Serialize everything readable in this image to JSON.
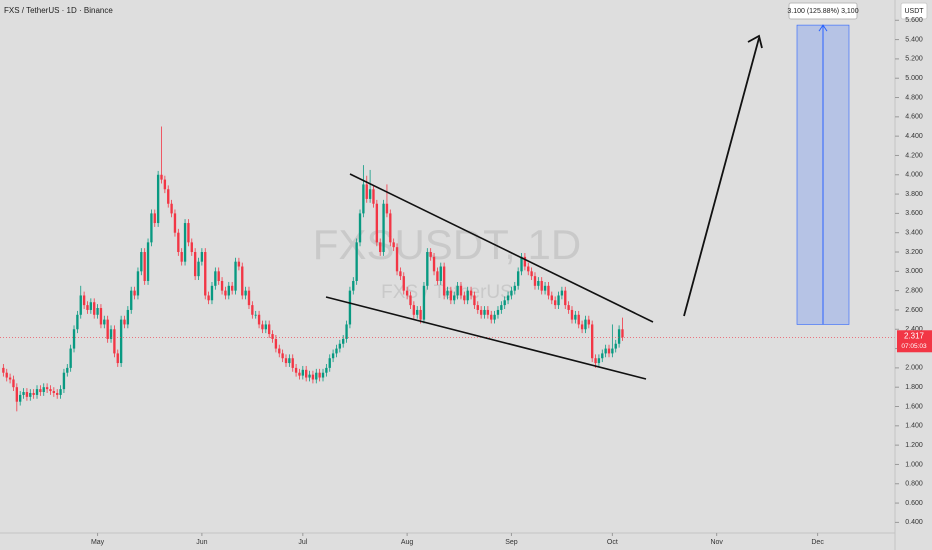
{
  "chart_data": {
    "type": "candlestick",
    "title": "FXS / TetherUS · 1D · Binance",
    "watermark": "FXSUSDT, 1D",
    "watermark_sub": "FXS / TetherUS",
    "y_axis_label": "USDT",
    "countdown": "07:05:03",
    "up_color": "#089981",
    "down_color": "#f23645",
    "ylim": [
      0.29,
      5.81
    ],
    "xlim": [
      -1,
      265
    ],
    "yticks": [
      {
        "value": 0.4,
        "label": "0.400"
      },
      {
        "value": 0.6,
        "label": "0.600"
      },
      {
        "value": 0.8,
        "label": "0.800"
      },
      {
        "value": 1.0,
        "label": "1.000"
      },
      {
        "value": 1.2,
        "label": "1.200"
      },
      {
        "value": 1.4,
        "label": "1.400"
      },
      {
        "value": 1.6,
        "label": "1.600"
      },
      {
        "value": 1.8,
        "label": "1.800"
      },
      {
        "value": 2.0,
        "label": "2.000"
      },
      {
        "value": 2.2,
        "label": "2.200"
      },
      {
        "value": 2.4,
        "label": "2.400"
      },
      {
        "value": 2.6,
        "label": "2.600"
      },
      {
        "value": 2.8,
        "label": "2.800"
      },
      {
        "value": 3.0,
        "label": "3.000"
      },
      {
        "value": 3.2,
        "label": "3.200"
      },
      {
        "value": 3.4,
        "label": "3.400"
      },
      {
        "value": 3.6,
        "label": "3.600"
      },
      {
        "value": 3.8,
        "label": "3.800"
      },
      {
        "value": 4.0,
        "label": "4.000"
      },
      {
        "value": 4.2,
        "label": "4.200"
      },
      {
        "value": 4.4,
        "label": "4.400"
      },
      {
        "value": 4.6,
        "label": "4.600"
      },
      {
        "value": 4.8,
        "label": "4.800"
      },
      {
        "value": 5.0,
        "label": "5.000"
      },
      {
        "value": 5.2,
        "label": "5.200"
      },
      {
        "value": 5.4,
        "label": "5.400"
      },
      {
        "value": 5.6,
        "label": "5.600"
      }
    ],
    "xticks": [
      {
        "value": 28,
        "label": "May"
      },
      {
        "value": 59,
        "label": "Jun"
      },
      {
        "value": 89,
        "label": "Jul"
      },
      {
        "value": 120,
        "label": "Aug"
      },
      {
        "value": 151,
        "label": "Sep"
      },
      {
        "value": 181,
        "label": "Oct"
      },
      {
        "value": 212,
        "label": "Nov"
      },
      {
        "value": 242,
        "label": "Dec"
      }
    ],
    "measure": {
      "label": "3.100 (125.88%) 3,100",
      "low": 2.45,
      "high": 5.55
    },
    "open": [
      2.0,
      1.95,
      1.9,
      1.88,
      1.8,
      1.65,
      1.72,
      1.75,
      1.7,
      1.74,
      1.72,
      1.78,
      1.75,
      1.8,
      1.78,
      1.76,
      1.74,
      1.72,
      1.78,
      1.95,
      2.0,
      2.2,
      2.4,
      2.55,
      2.75,
      2.65,
      2.6,
      2.68,
      2.55,
      2.62,
      2.45,
      2.5,
      2.3,
      2.4,
      2.15,
      2.05,
      2.5,
      2.45,
      2.6,
      2.8,
      2.75,
      3.0,
      3.2,
      2.9,
      3.3,
      3.6,
      3.5,
      4.0,
      3.95,
      3.85,
      3.7,
      3.6,
      3.4,
      3.2,
      3.1,
      3.5,
      3.3,
      3.2,
      2.95,
      3.1,
      3.2,
      2.75,
      2.7,
      2.85,
      3.0,
      2.9,
      2.8,
      2.75,
      2.85,
      2.8,
      3.1,
      3.05,
      2.75,
      2.8,
      2.65,
      2.55,
      2.55,
      2.45,
      2.4,
      2.45,
      2.35,
      2.3,
      2.2,
      2.15,
      2.1,
      2.05,
      2.1,
      2.0,
      1.95,
      1.92,
      1.98,
      1.9,
      1.93,
      1.88,
      1.95,
      1.9,
      1.95,
      2.0,
      2.1,
      2.15,
      2.2,
      2.25,
      2.3,
      2.45,
      2.8,
      2.9,
      3.3,
      3.6,
      3.9,
      3.75,
      3.85,
      3.7,
      3.3,
      3.2,
      3.7,
      3.6,
      3.3,
      3.25,
      3.0,
      2.95,
      2.8,
      2.75,
      2.65,
      2.55,
      2.6,
      2.5,
      2.85,
      3.2,
      3.15,
      3.0,
      2.9,
      3.05,
      2.75,
      2.8,
      2.7,
      2.75,
      2.85,
      2.75,
      2.7,
      2.8,
      2.75,
      2.65,
      2.6,
      2.55,
      2.6,
      2.55,
      2.5,
      2.55,
      2.6,
      2.65,
      2.7,
      2.75,
      2.8,
      2.85,
      3.0,
      3.15,
      3.05,
      3.0,
      2.95,
      2.85,
      2.9,
      2.8,
      2.85,
      2.75,
      2.7,
      2.65,
      2.75,
      2.8,
      2.65,
      2.6,
      2.5,
      2.55,
      2.45,
      2.4,
      2.5,
      2.45,
      2.1,
      2.05,
      2.1,
      2.15,
      2.2,
      2.15,
      2.2,
      2.25,
      2.4
    ],
    "high": [
      2.04,
      1.99,
      1.94,
      1.92,
      1.84,
      1.76,
      1.79,
      1.79,
      1.78,
      1.78,
      1.82,
      1.82,
      1.84,
      1.84,
      1.82,
      1.8,
      1.78,
      1.82,
      1.99,
      2.04,
      2.24,
      2.44,
      2.59,
      2.85,
      2.79,
      2.69,
      2.72,
      2.72,
      2.66,
      2.66,
      2.54,
      2.54,
      2.44,
      2.44,
      2.19,
      2.54,
      2.54,
      2.64,
      2.84,
      2.84,
      3.04,
      3.24,
      3.24,
      3.34,
      3.64,
      3.64,
      4.04,
      4.5,
      3.99,
      3.89,
      3.74,
      3.64,
      3.44,
      3.24,
      3.54,
      3.54,
      3.34,
      3.24,
      3.14,
      3.24,
      3.24,
      2.79,
      2.89,
      3.04,
      3.04,
      2.94,
      2.84,
      2.89,
      2.89,
      3.14,
      3.14,
      3.09,
      2.84,
      2.84,
      2.69,
      2.59,
      2.59,
      2.49,
      2.49,
      2.49,
      2.39,
      2.34,
      2.24,
      2.19,
      2.14,
      2.14,
      2.14,
      2.04,
      1.99,
      2.02,
      2.02,
      1.97,
      1.97,
      1.99,
      1.99,
      1.99,
      2.04,
      2.14,
      2.19,
      2.24,
      2.29,
      2.34,
      2.49,
      2.84,
      2.94,
      3.34,
      3.64,
      4.1,
      3.99,
      4.05,
      3.89,
      3.74,
      3.34,
      3.74,
      3.9,
      3.64,
      3.34,
      3.29,
      3.04,
      2.99,
      2.84,
      2.79,
      2.69,
      2.64,
      2.64,
      2.89,
      3.24,
      3.24,
      3.19,
      3.04,
      3.09,
      3.09,
      2.84,
      2.84,
      2.79,
      2.89,
      2.89,
      2.79,
      2.84,
      2.84,
      2.79,
      2.69,
      2.64,
      2.64,
      2.64,
      2.59,
      2.59,
      2.64,
      2.69,
      2.74,
      2.79,
      2.84,
      2.89,
      3.04,
      3.19,
      3.19,
      3.09,
      3.04,
      2.99,
      2.94,
      2.94,
      2.89,
      2.89,
      2.79,
      2.74,
      2.79,
      2.84,
      2.84,
      2.69,
      2.64,
      2.59,
      2.59,
      2.49,
      2.54,
      2.54,
      2.49,
      2.14,
      2.14,
      2.19,
      2.24,
      2.24,
      2.45,
      2.29,
      2.44,
      2.52
    ],
    "low": [
      1.91,
      1.86,
      1.84,
      1.76,
      1.55,
      1.61,
      1.68,
      1.66,
      1.66,
      1.68,
      1.68,
      1.71,
      1.71,
      1.74,
      1.72,
      1.7,
      1.68,
      1.68,
      1.74,
      1.91,
      1.96,
      2.16,
      2.36,
      2.51,
      2.61,
      2.56,
      2.56,
      2.51,
      2.51,
      2.41,
      2.41,
      2.26,
      2.26,
      2.11,
      2.01,
      2.01,
      2.41,
      2.41,
      2.56,
      2.71,
      2.71,
      2.96,
      2.86,
      2.86,
      3.26,
      3.46,
      3.46,
      3.91,
      3.81,
      3.66,
      3.56,
      3.36,
      3.16,
      3.06,
      3.06,
      3.26,
      3.16,
      2.91,
      2.91,
      3.06,
      2.71,
      2.66,
      2.66,
      2.81,
      2.86,
      2.76,
      2.71,
      2.71,
      2.76,
      2.76,
      3.01,
      2.71,
      2.71,
      2.61,
      2.51,
      2.51,
      2.41,
      2.36,
      2.36,
      2.31,
      2.26,
      2.16,
      2.11,
      2.06,
      2.01,
      2.01,
      1.96,
      1.91,
      1.88,
      1.88,
      1.86,
      1.86,
      1.84,
      1.84,
      1.86,
      1.86,
      1.91,
      1.96,
      2.06,
      2.11,
      2.16,
      2.21,
      2.26,
      2.41,
      2.76,
      2.86,
      3.26,
      3.56,
      3.71,
      3.71,
      3.66,
      3.26,
      3.16,
      3.16,
      3.56,
      3.26,
      3.21,
      2.96,
      2.91,
      2.76,
      2.71,
      2.61,
      2.51,
      2.51,
      2.46,
      2.46,
      2.81,
      3.11,
      2.96,
      2.86,
      2.86,
      2.71,
      2.71,
      2.66,
      2.66,
      2.71,
      2.71,
      2.66,
      2.66,
      2.71,
      2.61,
      2.56,
      2.51,
      2.51,
      2.51,
      2.46,
      2.46,
      2.51,
      2.56,
      2.61,
      2.66,
      2.71,
      2.76,
      2.81,
      2.96,
      3.01,
      2.96,
      2.91,
      2.81,
      2.81,
      2.76,
      2.76,
      2.71,
      2.66,
      2.61,
      2.61,
      2.71,
      2.61,
      2.56,
      2.46,
      2.46,
      2.41,
      2.36,
      2.36,
      2.41,
      2.06,
      2.0,
      2.01,
      2.06,
      2.11,
      2.11,
      2.11,
      2.16,
      2.21,
      2.28
    ],
    "close": [
      1.95,
      1.9,
      1.88,
      1.8,
      1.65,
      1.72,
      1.75,
      1.7,
      1.74,
      1.72,
      1.78,
      1.75,
      1.8,
      1.78,
      1.76,
      1.74,
      1.72,
      1.78,
      1.95,
      2.0,
      2.2,
      2.4,
      2.55,
      2.75,
      2.65,
      2.6,
      2.68,
      2.55,
      2.62,
      2.45,
      2.5,
      2.3,
      2.4,
      2.15,
      2.05,
      2.5,
      2.45,
      2.6,
      2.8,
      2.75,
      3.0,
      3.2,
      2.9,
      3.3,
      3.6,
      3.5,
      4.0,
      3.95,
      3.85,
      3.7,
      3.6,
      3.4,
      3.2,
      3.1,
      3.5,
      3.3,
      3.2,
      2.95,
      3.1,
      3.2,
      2.75,
      2.7,
      2.85,
      3.0,
      2.9,
      2.8,
      2.75,
      2.85,
      2.8,
      3.1,
      3.05,
      2.75,
      2.8,
      2.65,
      2.55,
      2.55,
      2.45,
      2.4,
      2.45,
      2.35,
      2.3,
      2.2,
      2.15,
      2.1,
      2.05,
      2.1,
      2.0,
      1.95,
      1.92,
      1.98,
      1.9,
      1.93,
      1.88,
      1.95,
      1.9,
      1.95,
      2.0,
      2.1,
      2.15,
      2.2,
      2.25,
      2.3,
      2.45,
      2.8,
      2.9,
      3.3,
      3.6,
      3.9,
      3.75,
      3.85,
      3.7,
      3.3,
      3.2,
      3.7,
      3.6,
      3.3,
      3.25,
      3.0,
      2.95,
      2.8,
      2.75,
      2.65,
      2.55,
      2.6,
      2.5,
      2.85,
      3.2,
      3.15,
      3.0,
      2.9,
      3.05,
      2.75,
      2.8,
      2.7,
      2.75,
      2.85,
      2.75,
      2.7,
      2.8,
      2.75,
      2.65,
      2.6,
      2.55,
      2.6,
      2.55,
      2.5,
      2.55,
      2.6,
      2.65,
      2.7,
      2.75,
      2.8,
      2.85,
      3.0,
      3.15,
      3.05,
      3.0,
      2.95,
      2.85,
      2.9,
      2.8,
      2.85,
      2.75,
      2.7,
      2.65,
      2.75,
      2.8,
      2.65,
      2.6,
      2.5,
      2.55,
      2.45,
      2.4,
      2.5,
      2.45,
      2.1,
      2.05,
      2.1,
      2.15,
      2.2,
      2.15,
      2.2,
      2.25,
      2.4,
      2.317
    ]
  }
}
